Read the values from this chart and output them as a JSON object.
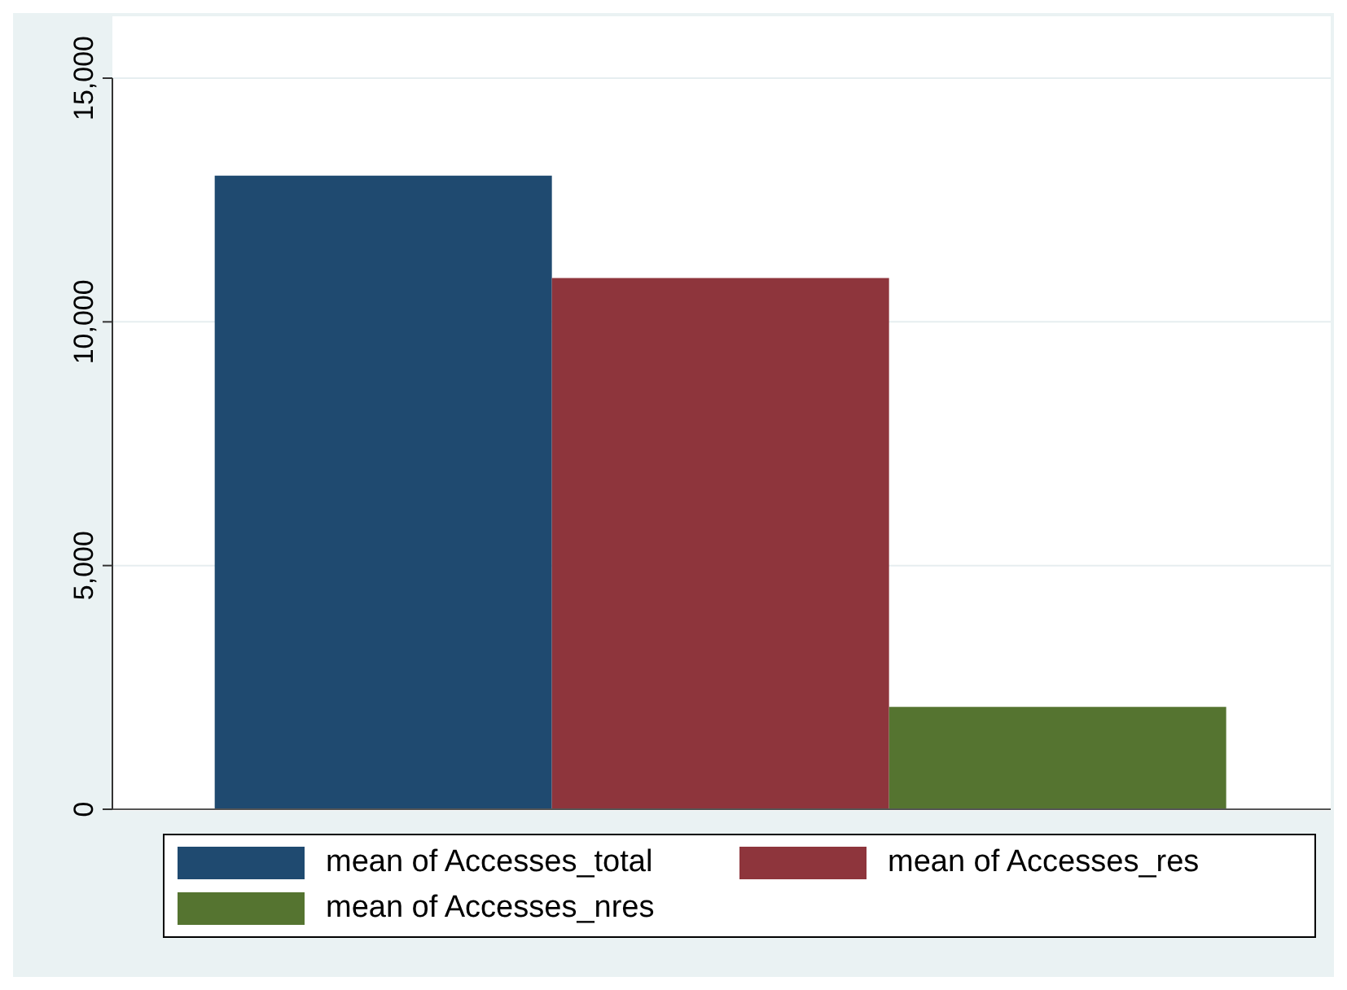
{
  "chart_data": {
    "type": "bar",
    "categories": [
      null
    ],
    "series": [
      {
        "name": "mean of Accesses_total",
        "color": "#1f4a70",
        "values": [
          13000
        ]
      },
      {
        "name": "mean of Accesses_res",
        "color": "#8e353c",
        "values": [
          10900
        ]
      },
      {
        "name": "mean of Accesses_nres",
        "color": "#557430",
        "values": [
          2100
        ]
      }
    ],
    "ylim": [
      0,
      15000
    ],
    "yticks": [
      {
        "value": 0,
        "label": "0"
      },
      {
        "value": 5000,
        "label": "5,000"
      },
      {
        "value": 10000,
        "label": "10,000"
      },
      {
        "value": 15000,
        "label": "15,000"
      }
    ],
    "grid": "y",
    "legend": "bottom"
  }
}
